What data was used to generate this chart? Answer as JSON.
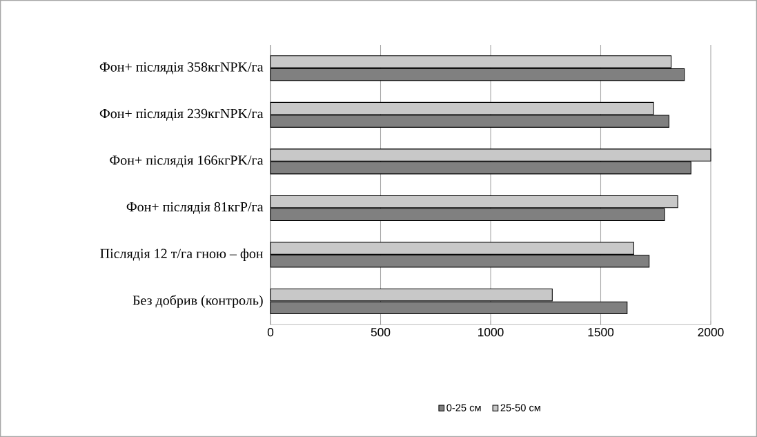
{
  "chart_data": {
    "type": "bar",
    "orientation": "horizontal",
    "categories": [
      "Фон+ післядія 358кгNPK/га",
      "Фон+ післядія 239кгNPK/га",
      "Фон+ післядія 166кгPK/га",
      "Фон+ післядія 81кгP/га",
      "Післядія 12 т/га гною – фон",
      "Без добрив (контроль)"
    ],
    "series": [
      {
        "name": "0-25 см",
        "color": "#808080",
        "values": [
          1880,
          1810,
          1910,
          1790,
          1720,
          1620
        ]
      },
      {
        "name": "25-50 см",
        "color": "#c8c8c8",
        "values": [
          1820,
          1740,
          2000,
          1850,
          1650,
          1280
        ]
      }
    ],
    "xlim": [
      0,
      2000
    ],
    "xticks": [
      0,
      500,
      1000,
      1500,
      2000
    ],
    "grid": "x",
    "legend": "bottom"
  }
}
